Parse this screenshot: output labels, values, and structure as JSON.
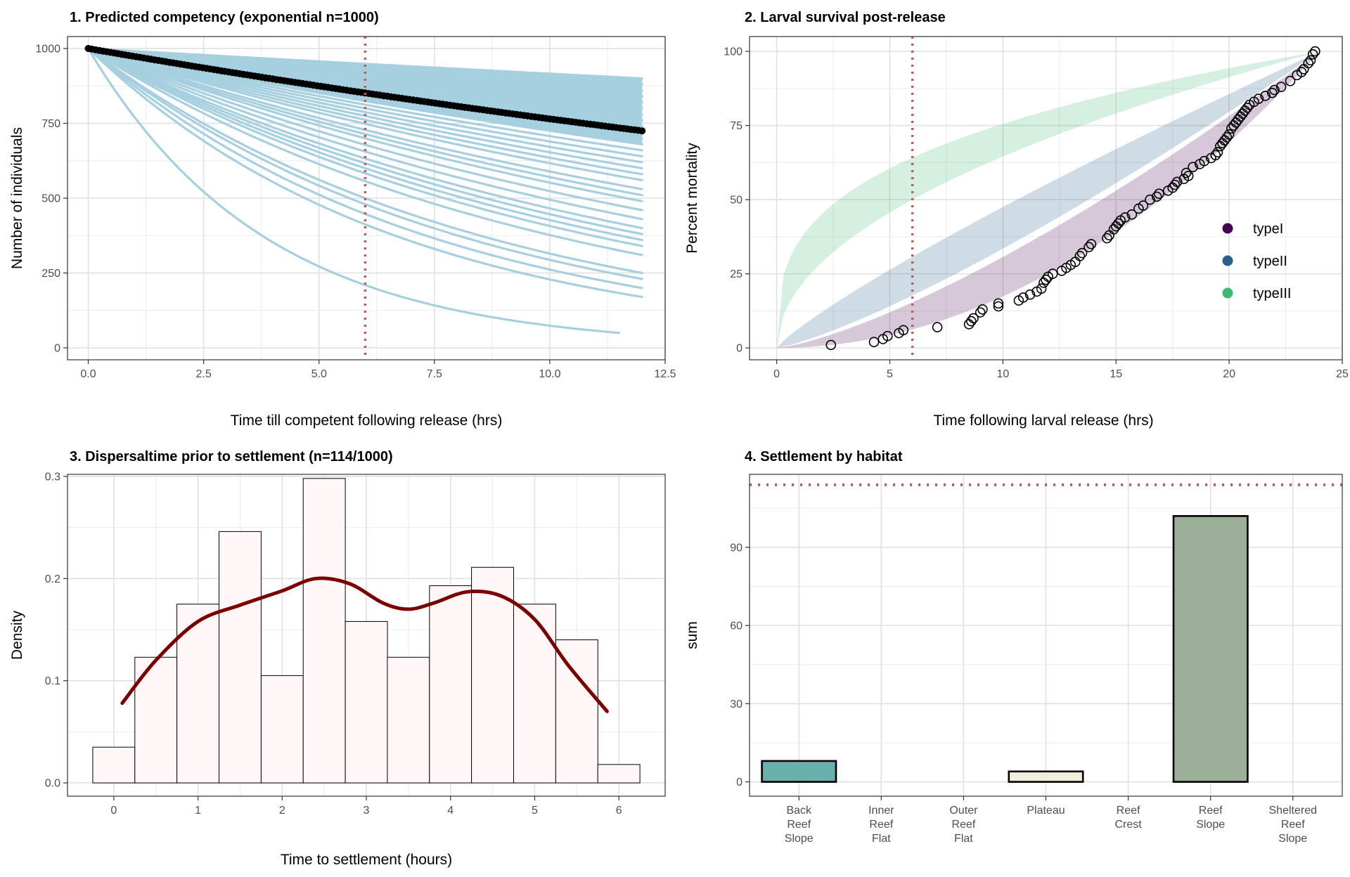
{
  "chart_data": [
    {
      "type": "scatter",
      "title": "1. Predicted competency (exponential n=1000)",
      "xlabel": "Time till competent following release (hrs)",
      "ylabel": "Number of individuals",
      "xlim": [
        -0.45,
        12.5
      ],
      "ylim": [
        -40,
        1040
      ],
      "xticks": [
        0,
        2.5,
        5,
        7.5,
        10,
        12.5
      ],
      "yticks": [
        0,
        250,
        500,
        750,
        1000
      ],
      "xtick_labels": [
        "0.0",
        "2.5",
        "5.0",
        "7.5",
        "10.0",
        "12.5"
      ],
      "ytick_labels": [
        "0",
        "250",
        "500",
        "750",
        "1000"
      ],
      "vline": 6,
      "grid": true,
      "simulation_color": "#a6cfe0",
      "mean_color": "#000000",
      "vline_color": "#b06060",
      "simulation_curves": [
        {
          "end_x": 11.5,
          "end_y": 50
        },
        {
          "end_x": 12,
          "end_y": 170
        },
        {
          "end_x": 12,
          "end_y": 200
        },
        {
          "end_x": 12,
          "end_y": 230
        },
        {
          "end_x": 12,
          "end_y": 250
        },
        {
          "end_x": 12,
          "end_y": 310
        },
        {
          "end_x": 12,
          "end_y": 340
        },
        {
          "end_x": 12,
          "end_y": 360
        },
        {
          "end_x": 12,
          "end_y": 380
        },
        {
          "end_x": 12,
          "end_y": 400
        },
        {
          "end_x": 12,
          "end_y": 430
        },
        {
          "end_x": 12,
          "end_y": 460
        },
        {
          "end_x": 12,
          "end_y": 490
        },
        {
          "end_x": 12,
          "end_y": 510
        },
        {
          "end_x": 12,
          "end_y": 530
        },
        {
          "end_x": 12,
          "end_y": 560
        },
        {
          "end_x": 12,
          "end_y": 580
        },
        {
          "end_x": 12,
          "end_y": 600
        },
        {
          "end_x": 12,
          "end_y": 620
        },
        {
          "end_x": 12,
          "end_y": 640
        },
        {
          "end_x": 12,
          "end_y": 660
        },
        {
          "end_x": 12,
          "end_y": 680
        },
        {
          "end_x": 12,
          "end_y": 700
        },
        {
          "end_x": 12,
          "end_y": 720
        },
        {
          "end_x": 12,
          "end_y": 740
        },
        {
          "end_x": 12,
          "end_y": 760
        },
        {
          "end_x": 12,
          "end_y": 780
        },
        {
          "end_x": 12,
          "end_y": 800
        },
        {
          "end_x": 12,
          "end_y": 820
        },
        {
          "end_x": 12,
          "end_y": 840
        },
        {
          "end_x": 12,
          "end_y": 860
        },
        {
          "end_x": 12,
          "end_y": 880
        },
        {
          "end_x": 12,
          "end_y": 900
        }
      ],
      "mean_curve": {
        "start_x": 0,
        "start_y": 1000,
        "end_x": 12,
        "end_y": 725
      }
    },
    {
      "type": "scatter",
      "title": "2. Larval survival post-release",
      "xlabel": "Time following larval release (hrs)",
      "ylabel": "Percent mortality",
      "xlim": [
        -1.2,
        25
      ],
      "ylim": [
        -4,
        105
      ],
      "xticks": [
        0,
        5,
        10,
        15,
        20,
        25
      ],
      "yticks": [
        0,
        25,
        50,
        75,
        100
      ],
      "xtick_labels": [
        "0",
        "5",
        "10",
        "15",
        "20",
        "25"
      ],
      "ytick_labels": [
        "0",
        "25",
        "50",
        "75",
        "100"
      ],
      "vline": 6,
      "grid": true,
      "legend_position": "right-inside",
      "series": [
        {
          "name": "typeI",
          "color": "#440154"
        },
        {
          "name": "typeII",
          "color": "#2a5f8a"
        },
        {
          "name": "typeIII",
          "color": "#3fb870"
        }
      ],
      "observed_points": [
        [
          2.4,
          1
        ],
        [
          4.3,
          2
        ],
        [
          4.7,
          3
        ],
        [
          4.9,
          4
        ],
        [
          5.4,
          5
        ],
        [
          5.6,
          6
        ],
        [
          7.1,
          7
        ],
        [
          8.5,
          8
        ],
        [
          8.6,
          9
        ],
        [
          8.7,
          10
        ],
        [
          9.0,
          12
        ],
        [
          9.1,
          13
        ],
        [
          9.8,
          14
        ],
        [
          9.8,
          15
        ],
        [
          10.7,
          16
        ],
        [
          10.9,
          17
        ],
        [
          11.2,
          18
        ],
        [
          11.5,
          19
        ],
        [
          11.7,
          20
        ],
        [
          11.8,
          22
        ],
        [
          11.9,
          23
        ],
        [
          12.0,
          24
        ],
        [
          12.2,
          25
        ],
        [
          12.6,
          26
        ],
        [
          12.8,
          27
        ],
        [
          13.0,
          28
        ],
        [
          13.2,
          29
        ],
        [
          13.4,
          31
        ],
        [
          13.5,
          32
        ],
        [
          13.8,
          34
        ],
        [
          13.9,
          35
        ],
        [
          14.6,
          37
        ],
        [
          14.7,
          38
        ],
        [
          14.9,
          40
        ],
        [
          15.0,
          41
        ],
        [
          15.1,
          42
        ],
        [
          15.2,
          43
        ],
        [
          15.4,
          44
        ],
        [
          15.7,
          45
        ],
        [
          16.0,
          47
        ],
        [
          16.2,
          48
        ],
        [
          16.5,
          50
        ],
        [
          16.8,
          51
        ],
        [
          16.9,
          52
        ],
        [
          17.3,
          53
        ],
        [
          17.5,
          54
        ],
        [
          17.6,
          55
        ],
        [
          17.7,
          56
        ],
        [
          18.0,
          57
        ],
        [
          18.2,
          58
        ],
        [
          18.1,
          59
        ],
        [
          18.4,
          61
        ],
        [
          18.7,
          62
        ],
        [
          18.9,
          63
        ],
        [
          19.2,
          64
        ],
        [
          19.4,
          65
        ],
        [
          19.5,
          66
        ],
        [
          19.6,
          68
        ],
        [
          19.7,
          69
        ],
        [
          19.8,
          70
        ],
        [
          19.9,
          71
        ],
        [
          20.0,
          72
        ],
        [
          20.1,
          74
        ],
        [
          20.2,
          75
        ],
        [
          20.3,
          76
        ],
        [
          20.4,
          77
        ],
        [
          20.5,
          78
        ],
        [
          20.6,
          79
        ],
        [
          20.7,
          80
        ],
        [
          20.8,
          81
        ],
        [
          20.9,
          82
        ],
        [
          21.1,
          83
        ],
        [
          21.3,
          84
        ],
        [
          21.6,
          85
        ],
        [
          21.9,
          86
        ],
        [
          22.0,
          87
        ],
        [
          22.3,
          88
        ],
        [
          22.7,
          90
        ],
        [
          23.0,
          92
        ],
        [
          23.2,
          93
        ],
        [
          23.3,
          94
        ],
        [
          23.5,
          96
        ],
        [
          23.6,
          97
        ],
        [
          23.7,
          99
        ],
        [
          23.8,
          100
        ]
      ]
    },
    {
      "type": "bar",
      "title": "3. Dispersaltime prior to settlement (n=114/1000)",
      "xlabel": "Time to settlement (hours)",
      "ylabel": "Density",
      "xlim": [
        -0.55,
        6.55
      ],
      "ylim": [
        -0.013,
        0.302
      ],
      "xticks": [
        0,
        1,
        2,
        3,
        4,
        5,
        6
      ],
      "yticks": [
        0,
        0.1,
        0.2,
        0.3
      ],
      "xtick_labels": [
        "0",
        "1",
        "2",
        "3",
        "4",
        "5",
        "6"
      ],
      "ytick_labels": [
        "0.0",
        "0.1",
        "0.2",
        "0.3"
      ],
      "grid": true,
      "bin_width": 0.5,
      "bin_centers": [
        0,
        0.5,
        1,
        1.5,
        2,
        2.5,
        3,
        3.5,
        4,
        4.5,
        5,
        5.5,
        6
      ],
      "values": [
        0.035,
        0.123,
        0.175,
        0.246,
        0.105,
        0.298,
        0.158,
        0.123,
        0.193,
        0.211,
        0.175,
        0.14,
        0.018
      ],
      "bar_fill": "#fff7f7",
      "density_color": "#7b0000",
      "density_curve": {
        "x": [
          0.1,
          0.5,
          1.0,
          1.5,
          2.0,
          2.4,
          2.8,
          3.2,
          3.5,
          3.8,
          4.2,
          4.6,
          5.0,
          5.4,
          5.86
        ],
        "y": [
          0.078,
          0.12,
          0.158,
          0.174,
          0.188,
          0.2,
          0.195,
          0.176,
          0.17,
          0.176,
          0.187,
          0.183,
          0.16,
          0.115,
          0.07
        ]
      }
    },
    {
      "type": "bar",
      "title": "4. Settlement by habitat",
      "xlabel": "",
      "ylabel": "sum",
      "ylim": [
        -5.5,
        118
      ],
      "yticks": [
        0,
        30,
        60,
        90
      ],
      "ytick_labels": [
        "0",
        "30",
        "60",
        "90"
      ],
      "grid": true,
      "hline": 114,
      "categories": [
        "Back Reef Slope",
        "Inner Reef Flat",
        "Outer Reef Flat",
        "Plateau",
        "Reef Crest",
        "Reef Slope",
        "Sheltered Reef Slope"
      ],
      "category_lines": [
        [
          "Back",
          "Reef",
          "Slope"
        ],
        [
          "Inner",
          "Reef",
          "Flat"
        ],
        [
          "Outer",
          "Reef",
          "Flat"
        ],
        [
          "Plateau"
        ],
        [
          "Reef",
          "Crest"
        ],
        [
          "Reef",
          "Slope"
        ],
        [
          "Sheltered",
          "Reef",
          "Slope"
        ]
      ],
      "values": [
        8,
        0,
        0,
        4,
        0,
        102,
        0
      ],
      "colors": [
        "#6ab0ac",
        "#6ab0ac",
        "#6ab0ac",
        "#f2eedc",
        "#6ab0ac",
        "#9aae98",
        "#6ab0ac"
      ]
    }
  ]
}
